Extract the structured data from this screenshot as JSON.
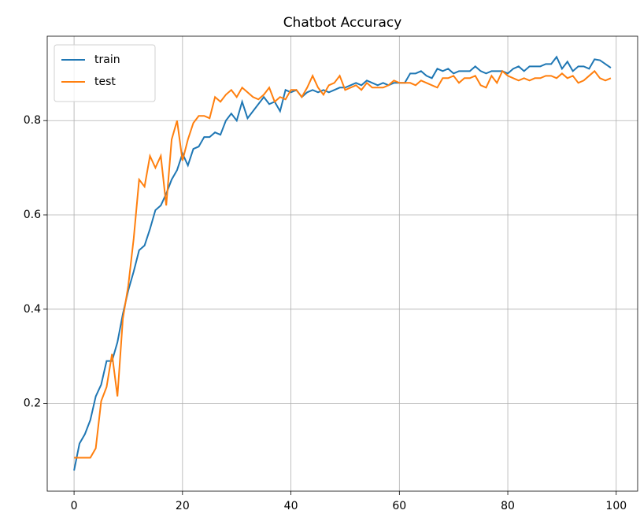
{
  "chart_data": {
    "type": "line",
    "title": "Chatbot Accuracy",
    "x": [
      0,
      1,
      2,
      3,
      4,
      5,
      6,
      7,
      8,
      9,
      10,
      11,
      12,
      13,
      14,
      15,
      16,
      17,
      18,
      19,
      20,
      21,
      22,
      23,
      24,
      25,
      26,
      27,
      28,
      29,
      30,
      31,
      32,
      33,
      34,
      35,
      36,
      37,
      38,
      39,
      40,
      41,
      42,
      43,
      44,
      45,
      46,
      47,
      48,
      49,
      50,
      51,
      52,
      53,
      54,
      55,
      56,
      57,
      58,
      59,
      60,
      61,
      62,
      63,
      64,
      65,
      66,
      67,
      68,
      69,
      70,
      71,
      72,
      73,
      74,
      75,
      76,
      77,
      78,
      79,
      80,
      81,
      82,
      83,
      84,
      85,
      86,
      87,
      88,
      89,
      90,
      91,
      92,
      93,
      94,
      95,
      96,
      97,
      98,
      99
    ],
    "series": [
      {
        "name": "train",
        "color": "#1f77b4",
        "values": [
          0.058,
          0.115,
          0.135,
          0.165,
          0.215,
          0.24,
          0.29,
          0.29,
          0.33,
          0.39,
          0.44,
          0.48,
          0.525,
          0.535,
          0.57,
          0.61,
          0.62,
          0.645,
          0.675,
          0.695,
          0.73,
          0.705,
          0.74,
          0.745,
          0.765,
          0.765,
          0.775,
          0.77,
          0.8,
          0.815,
          0.8,
          0.84,
          0.805,
          0.82,
          0.835,
          0.85,
          0.835,
          0.84,
          0.82,
          0.865,
          0.86,
          0.865,
          0.85,
          0.86,
          0.865,
          0.86,
          0.865,
          0.86,
          0.865,
          0.87,
          0.87,
          0.875,
          0.88,
          0.875,
          0.885,
          0.88,
          0.875,
          0.88,
          0.875,
          0.88,
          0.88,
          0.88,
          0.9,
          0.9,
          0.905,
          0.895,
          0.89,
          0.91,
          0.905,
          0.91,
          0.9,
          0.905,
          0.905,
          0.905,
          0.915,
          0.905,
          0.9,
          0.905,
          0.905,
          0.905,
          0.9,
          0.91,
          0.915,
          0.905,
          0.915,
          0.915,
          0.915,
          0.92,
          0.92,
          0.935,
          0.91,
          0.925,
          0.905,
          0.915,
          0.915,
          0.91,
          0.93,
          0.928,
          0.92,
          0.912
        ]
      },
      {
        "name": "test",
        "color": "#ff7f0e",
        "values": [
          0.085,
          0.085,
          0.085,
          0.085,
          0.105,
          0.205,
          0.235,
          0.305,
          0.215,
          0.38,
          0.45,
          0.55,
          0.675,
          0.66,
          0.725,
          0.7,
          0.725,
          0.62,
          0.76,
          0.8,
          0.715,
          0.76,
          0.795,
          0.81,
          0.81,
          0.805,
          0.85,
          0.84,
          0.855,
          0.865,
          0.85,
          0.87,
          0.86,
          0.85,
          0.845,
          0.855,
          0.87,
          0.84,
          0.85,
          0.845,
          0.865,
          0.865,
          0.85,
          0.87,
          0.895,
          0.87,
          0.855,
          0.875,
          0.88,
          0.895,
          0.865,
          0.87,
          0.875,
          0.865,
          0.88,
          0.87,
          0.87,
          0.87,
          0.875,
          0.885,
          0.88,
          0.88,
          0.88,
          0.875,
          0.885,
          0.88,
          0.875,
          0.87,
          0.89,
          0.89,
          0.895,
          0.88,
          0.89,
          0.89,
          0.895,
          0.875,
          0.87,
          0.895,
          0.88,
          0.905,
          0.895,
          0.89,
          0.885,
          0.89,
          0.885,
          0.89,
          0.89,
          0.895,
          0.895,
          0.89,
          0.9,
          0.89,
          0.895,
          0.88,
          0.885,
          0.895,
          0.905,
          0.89,
          0.885,
          0.89
        ]
      }
    ],
    "xlim": [
      -4.95,
      103.95
    ],
    "ylim": [
      0.014,
      0.979
    ],
    "xticks": [
      0,
      20,
      40,
      60,
      80,
      100
    ],
    "yticks": [
      0.2,
      0.4,
      0.6,
      0.8
    ],
    "grid": true,
    "legend": "upper left"
  }
}
